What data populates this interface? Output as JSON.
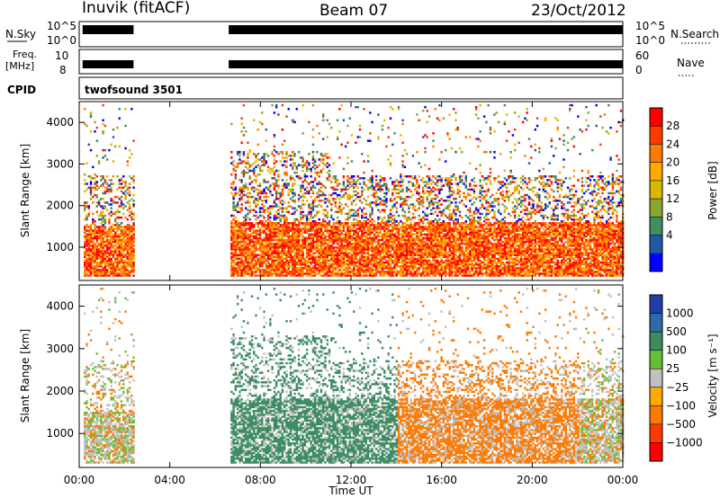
{
  "header": {
    "station": "Inuvik (fitACF)",
    "beam": "Beam 07",
    "date": "23/Oct/2012"
  },
  "nsky_panel": {
    "left_label": "N.Sky",
    "left_ticks": [
      "10^5",
      "10^0"
    ],
    "right_ticks": [
      "10^5",
      "10^0"
    ],
    "right_label": "N.Search"
  },
  "freq_panel": {
    "left_label_line1": "Freq.",
    "left_label_line2": "[MHz]",
    "left_ticks": [
      "10",
      "8"
    ],
    "right_ticks": [
      "60",
      "0"
    ],
    "right_label": "Nave"
  },
  "cpid_panel": {
    "label": "CPID",
    "program": "twofsound 3501"
  },
  "chart_data": [
    {
      "type": "heatmap",
      "name": "power",
      "ylabel": "Slant Range [km]",
      "ylim": [
        200,
        4500
      ],
      "yticks": [
        1000,
        2000,
        3000,
        4000
      ],
      "xlim": [
        0,
        24
      ],
      "colorbar_label": "Power [dB]",
      "colorbar_ticks": [
        "28",
        "24",
        "20",
        "16",
        "12",
        "8",
        "4"
      ],
      "colorbar_colors": [
        "#ff0000",
        "#ff3a00",
        "#ff7a00",
        "#ffaa00",
        "#d8b800",
        "#8aa830",
        "#3f8f60",
        "#1f5aa8",
        "#0000ff"
      ],
      "data_gaps_hours": [
        [
          2.4,
          6.6
        ]
      ]
    },
    {
      "type": "heatmap",
      "name": "velocity",
      "ylabel": "Slant Range [km]",
      "ylim": [
        200,
        4500
      ],
      "yticks": [
        1000,
        2000,
        3000,
        4000
      ],
      "xlim": [
        0,
        24
      ],
      "xlabel": "Time UT",
      "xticks": [
        "00:00",
        "04:00",
        "08:00",
        "12:00",
        "16:00",
        "20:00",
        "00:00"
      ],
      "colorbar_label": "Velocity [m s⁻¹]",
      "colorbar_ticks": [
        "1000",
        "500",
        "100",
        "25",
        "−25",
        "−100",
        "−500",
        "−1000"
      ],
      "colorbar_colors": [
        "#1f3ea8",
        "#2e6aa8",
        "#3c8c62",
        "#66c033",
        "#c0c0c0",
        "#ffaa00",
        "#ff7a00",
        "#ff3a00",
        "#ff0000"
      ],
      "data_gaps_hours": [
        [
          2.4,
          6.6
        ]
      ]
    }
  ]
}
